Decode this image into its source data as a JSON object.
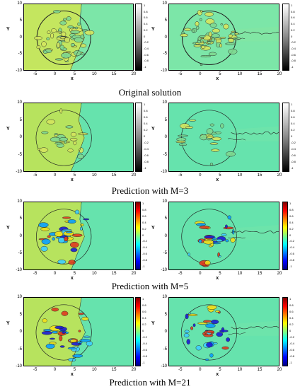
{
  "captions": [
    "Original solution",
    "Prediction with M=3",
    "Prediction with M=5",
    "Prediction with M=21"
  ],
  "axes": {
    "xlabel": "x",
    "ylabel": "Y",
    "xticks": [
      "-5",
      "0",
      "5",
      "10",
      "15",
      "20"
    ],
    "yticks": [
      "10",
      "5",
      "0",
      "-5",
      "-10"
    ]
  },
  "colorbar_ticks": [
    "1",
    "0.8",
    "0.6",
    "0.4",
    "0.2",
    "0",
    "-0.2",
    "-0.4",
    "-0.6",
    "-0.8",
    "-1"
  ],
  "colors": {
    "field_left": "#c4e65f",
    "field_right": "#7ce6a8",
    "field_pred_left": "#b7e35e",
    "field_pred_right": "#66e3ad",
    "contour": "#222222"
  },
  "figure_grid": {
    "rows": [
      {
        "colormap": "gray",
        "panels": [
          "left",
          "right"
        ]
      },
      {
        "colormap": "gray",
        "panels": [
          "left",
          "right"
        ]
      },
      {
        "colormap": "jet",
        "panels": [
          "left",
          "right"
        ]
      },
      {
        "colormap": "jet",
        "panels": [
          "left",
          "right"
        ]
      }
    ]
  }
}
